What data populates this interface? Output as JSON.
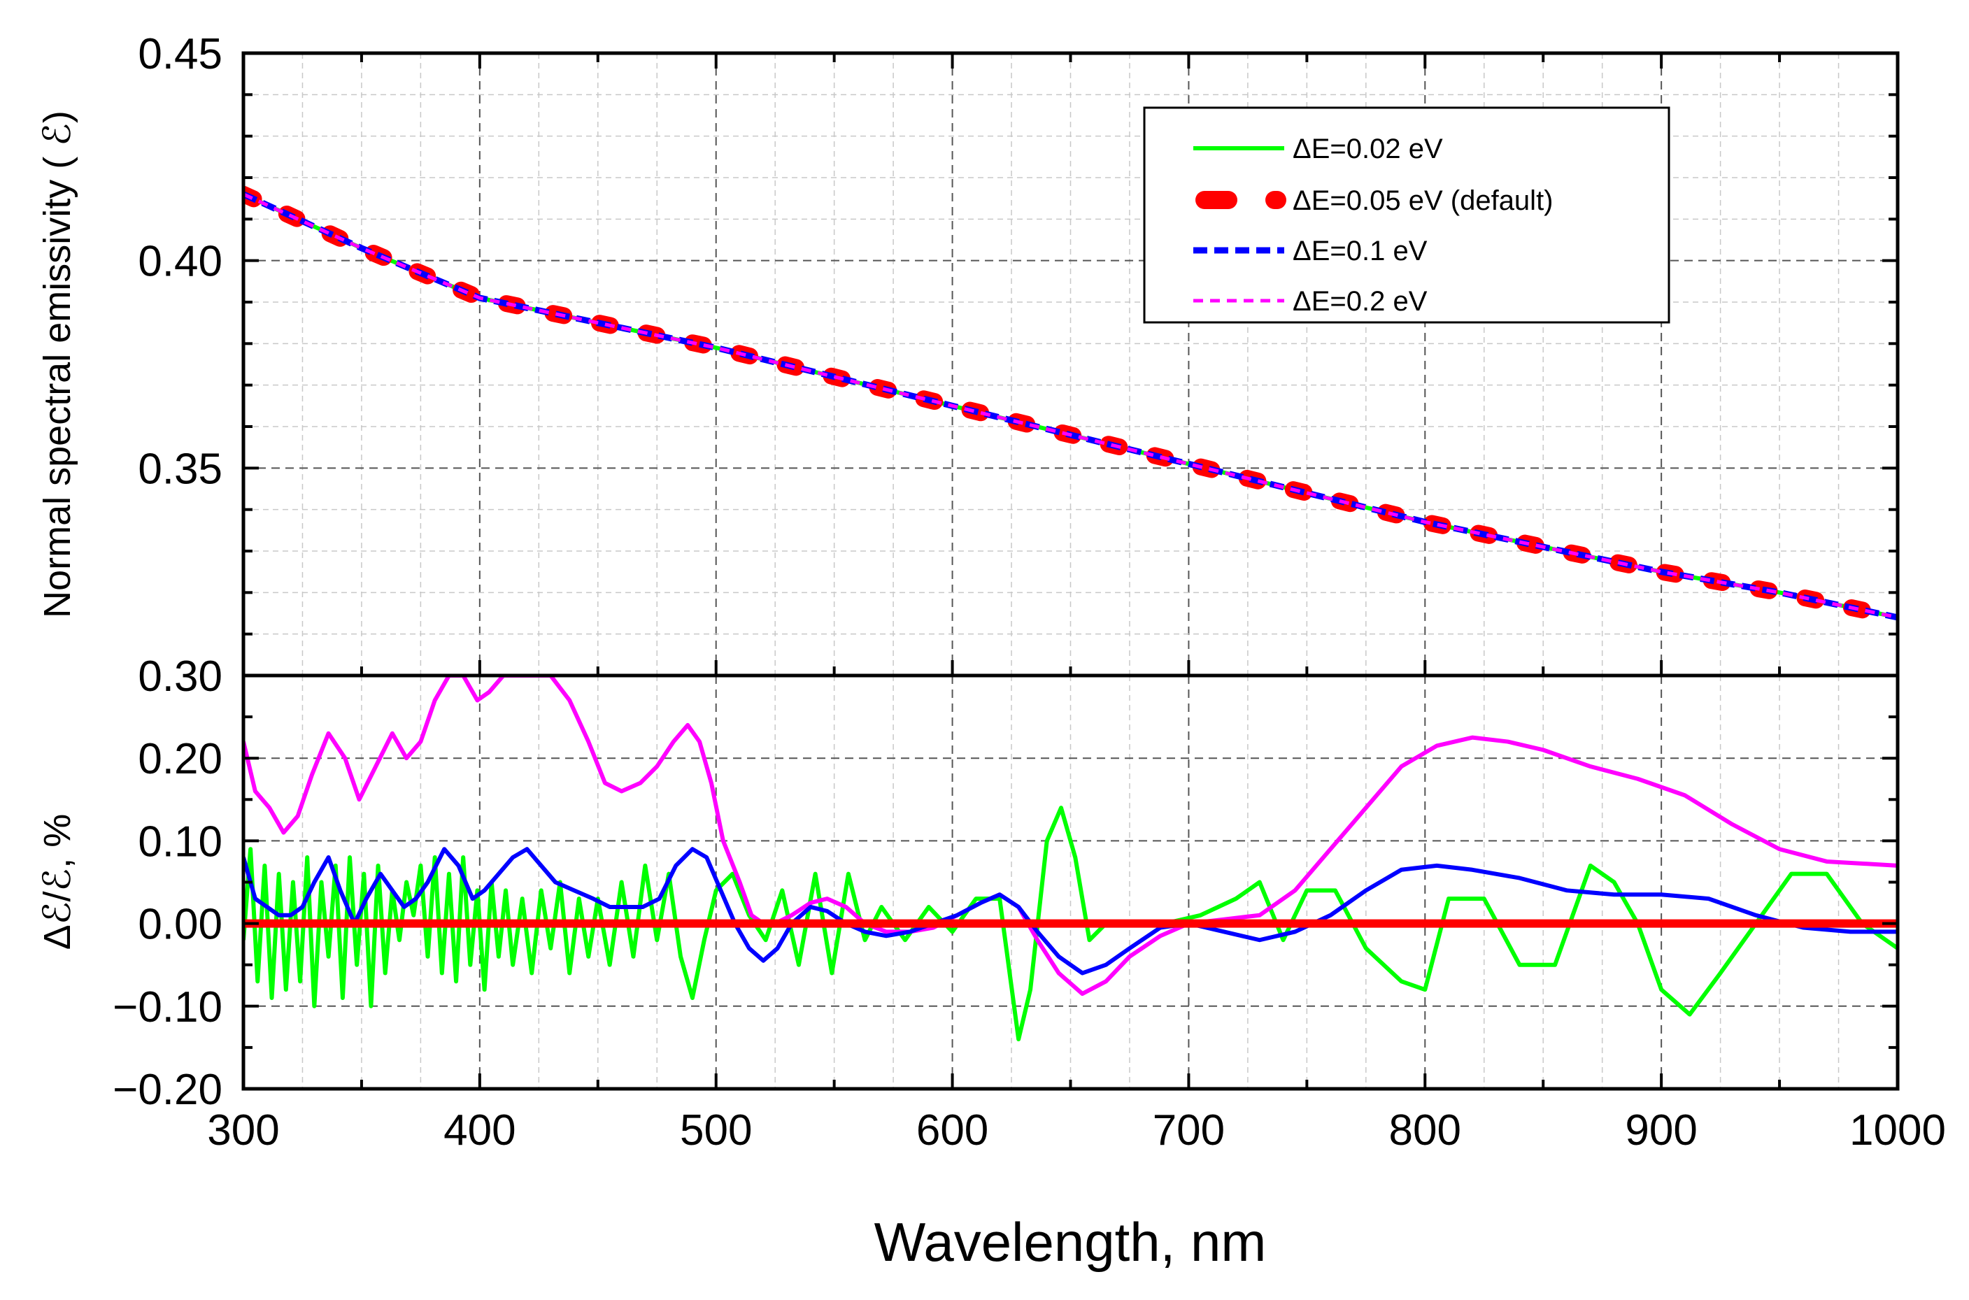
{
  "chart_data": [
    {
      "type": "line",
      "panel": "top",
      "ylabel": "Normal spectral emissivity ( ℰ)",
      "xlabel": "",
      "xlim": [
        300,
        1000
      ],
      "ylim": [
        0.3,
        0.45
      ],
      "ytick_labels": [
        "0.30",
        "0.35",
        "0.40",
        "0.45"
      ],
      "grid": true,
      "legend_position": "top-right",
      "x": [
        300,
        350,
        400,
        450,
        500,
        550,
        600,
        650,
        700,
        750,
        800,
        850,
        900,
        950,
        1000
      ],
      "series": [
        {
          "name": "ΔE=0.02 eV",
          "color": "#00ff00",
          "style": "solid",
          "values": [
            0.416,
            0.403,
            0.391,
            0.385,
            0.379,
            0.372,
            0.365,
            0.358,
            0.351,
            0.344,
            0.337,
            0.331,
            0.325,
            0.32,
            0.314
          ]
        },
        {
          "name": "ΔE=0.05 eV (default)",
          "color": "#ff0000",
          "style": "thick-dash",
          "values": [
            0.416,
            0.403,
            0.391,
            0.385,
            0.379,
            0.372,
            0.365,
            0.358,
            0.351,
            0.344,
            0.337,
            0.331,
            0.325,
            0.32,
            0.314
          ]
        },
        {
          "name": "ΔE=0.1 eV",
          "color": "#0000ff",
          "style": "dash",
          "values": [
            0.416,
            0.403,
            0.391,
            0.385,
            0.379,
            0.372,
            0.365,
            0.358,
            0.351,
            0.344,
            0.337,
            0.331,
            0.325,
            0.32,
            0.314
          ]
        },
        {
          "name": "ΔE=0.2 eV",
          "color": "#ff00ff",
          "style": "short-dash",
          "values": [
            0.416,
            0.403,
            0.391,
            0.385,
            0.379,
            0.372,
            0.365,
            0.358,
            0.351,
            0.344,
            0.337,
            0.331,
            0.325,
            0.32,
            0.314
          ]
        }
      ]
    },
    {
      "type": "line",
      "panel": "bottom",
      "xlabel": "Wavelength, nm",
      "ylabel": "Δℰ/ℰ, %",
      "xlim": [
        300,
        1000
      ],
      "ylim": [
        -0.2,
        0.3
      ],
      "xtick_labels": [
        "300",
        "400",
        "500",
        "600",
        "700",
        "800",
        "900",
        "1000"
      ],
      "ytick_labels": [
        "−0.20",
        "−0.10",
        "0.00",
        "0.10",
        "0.20",
        "0.30"
      ],
      "grid": true,
      "series": [
        {
          "name": "ΔE=0.02 eV",
          "color": "#00ff00",
          "x": [
            300,
            303,
            306,
            309,
            312,
            315,
            318,
            321,
            324,
            327,
            330,
            333,
            336,
            339,
            342,
            345,
            348,
            351,
            354,
            357,
            360,
            363,
            366,
            369,
            372,
            375,
            378,
            381,
            384,
            387,
            390,
            393,
            396,
            399,
            402,
            405,
            408,
            411,
            414,
            418,
            422,
            426,
            430,
            434,
            438,
            442,
            446,
            450,
            455,
            460,
            465,
            470,
            475,
            480,
            485,
            490,
            495,
            500,
            507,
            514,
            521,
            528,
            535,
            542,
            549,
            556,
            563,
            570,
            580,
            590,
            600,
            610,
            620,
            628,
            633,
            640,
            646,
            652,
            658,
            665,
            675,
            690,
            705,
            720,
            730,
            740,
            750,
            762,
            775,
            790,
            800,
            810,
            825,
            840,
            855,
            870,
            880,
            890,
            900,
            912,
            925,
            940,
            955,
            970,
            985,
            1000
          ],
          "values": [
            -0.02,
            0.09,
            -0.07,
            0.07,
            -0.09,
            0.06,
            -0.08,
            0.05,
            -0.07,
            0.08,
            -0.1,
            0.05,
            -0.04,
            0.07,
            -0.09,
            0.08,
            -0.05,
            0.06,
            -0.1,
            0.07,
            -0.06,
            0.04,
            -0.02,
            0.05,
            0.01,
            0.07,
            -0.04,
            0.08,
            -0.06,
            0.06,
            -0.07,
            0.08,
            -0.05,
            0.04,
            -0.08,
            0.05,
            -0.04,
            0.04,
            -0.05,
            0.03,
            -0.06,
            0.04,
            -0.03,
            0.05,
            -0.06,
            0.03,
            -0.04,
            0.03,
            -0.05,
            0.05,
            -0.04,
            0.07,
            -0.02,
            0.06,
            -0.04,
            -0.09,
            -0.02,
            0.04,
            0.06,
            0.01,
            -0.02,
            0.04,
            -0.05,
            0.06,
            -0.06,
            0.06,
            -0.02,
            0.02,
            -0.02,
            0.02,
            -0.01,
            0.03,
            0.03,
            -0.14,
            -0.08,
            0.1,
            0.14,
            0.08,
            -0.02,
            0.0,
            0.0,
            0.0,
            0.01,
            0.03,
            0.05,
            -0.02,
            0.04,
            0.04,
            -0.03,
            -0.07,
            -0.08,
            0.03,
            0.03,
            -0.05,
            -0.05,
            0.07,
            0.05,
            0.0,
            -0.08,
            -0.11,
            -0.06,
            0.0,
            0.06,
            0.06,
            0.0,
            -0.03
          ]
        },
        {
          "name": "ΔE=0.05 eV (default)",
          "color": "#ff0000",
          "x": [
            300,
            1000
          ],
          "values": [
            0.0,
            0.0
          ]
        },
        {
          "name": "ΔE=0.1 eV",
          "color": "#0000ff",
          "x": [
            300,
            305,
            310,
            315,
            320,
            325,
            330,
            336,
            341,
            347,
            352,
            358,
            363,
            368,
            373,
            378,
            385,
            391,
            397,
            402,
            408,
            414,
            420,
            426,
            432,
            440,
            448,
            455,
            462,
            469,
            476,
            483,
            490,
            496,
            502,
            508,
            514,
            520,
            526,
            532,
            540,
            547,
            555,
            563,
            572,
            582,
            592,
            602,
            612,
            620,
            628,
            636,
            645,
            655,
            665,
            675,
            688,
            700,
            715,
            730,
            745,
            760,
            775,
            790,
            805,
            820,
            840,
            860,
            880,
            900,
            920,
            940,
            960,
            980,
            1000
          ],
          "values": [
            0.08,
            0.03,
            0.02,
            0.01,
            0.01,
            0.02,
            0.05,
            0.08,
            0.04,
            0.0,
            0.03,
            0.06,
            0.04,
            0.02,
            0.03,
            0.05,
            0.09,
            0.07,
            0.03,
            0.04,
            0.06,
            0.08,
            0.09,
            0.07,
            0.05,
            0.04,
            0.03,
            0.02,
            0.02,
            0.02,
            0.03,
            0.07,
            0.09,
            0.08,
            0.04,
            0.0,
            -0.03,
            -0.045,
            -0.03,
            0.0,
            0.02,
            0.015,
            0.0,
            -0.01,
            -0.015,
            -0.01,
            0.0,
            0.01,
            0.025,
            0.035,
            0.02,
            -0.01,
            -0.04,
            -0.06,
            -0.05,
            -0.03,
            -0.005,
            0.0,
            -0.01,
            -0.02,
            -0.01,
            0.01,
            0.04,
            0.065,
            0.07,
            0.065,
            0.055,
            0.04,
            0.035,
            0.035,
            0.03,
            0.01,
            -0.005,
            -0.01,
            -0.01
          ]
        },
        {
          "name": "ΔE=0.2 eV",
          "color": "#ff00ff",
          "x": [
            300,
            305,
            311,
            317,
            323,
            329,
            336,
            343,
            349,
            356,
            363,
            369,
            375,
            381,
            387,
            393,
            399,
            404,
            410,
            416,
            422,
            430,
            438,
            446,
            453,
            460,
            468,
            475,
            482,
            488,
            493,
            498,
            503,
            510,
            515,
            520,
            525,
            532,
            540,
            547,
            555,
            563,
            572,
            582,
            592,
            602,
            612,
            620,
            628,
            636,
            645,
            655,
            665,
            675,
            688,
            700,
            715,
            730,
            745,
            760,
            775,
            790,
            805,
            820,
            835,
            850,
            870,
            890,
            910,
            930,
            950,
            970,
            1000
          ],
          "values": [
            0.22,
            0.16,
            0.14,
            0.11,
            0.13,
            0.18,
            0.23,
            0.2,
            0.15,
            0.19,
            0.23,
            0.2,
            0.22,
            0.27,
            0.3,
            0.3,
            0.27,
            0.28,
            0.3,
            0.3,
            0.3,
            0.3,
            0.27,
            0.22,
            0.17,
            0.16,
            0.17,
            0.19,
            0.22,
            0.24,
            0.22,
            0.17,
            0.1,
            0.05,
            0.01,
            0.0,
            0.0,
            0.01,
            0.025,
            0.03,
            0.02,
            0.0,
            -0.01,
            -0.01,
            -0.005,
            0.01,
            0.025,
            0.035,
            0.02,
            -0.02,
            -0.06,
            -0.085,
            -0.07,
            -0.04,
            -0.015,
            0.0,
            0.005,
            0.01,
            0.04,
            0.09,
            0.14,
            0.19,
            0.215,
            0.225,
            0.22,
            0.21,
            0.19,
            0.175,
            0.155,
            0.12,
            0.09,
            0.075,
            0.07
          ]
        }
      ]
    }
  ]
}
